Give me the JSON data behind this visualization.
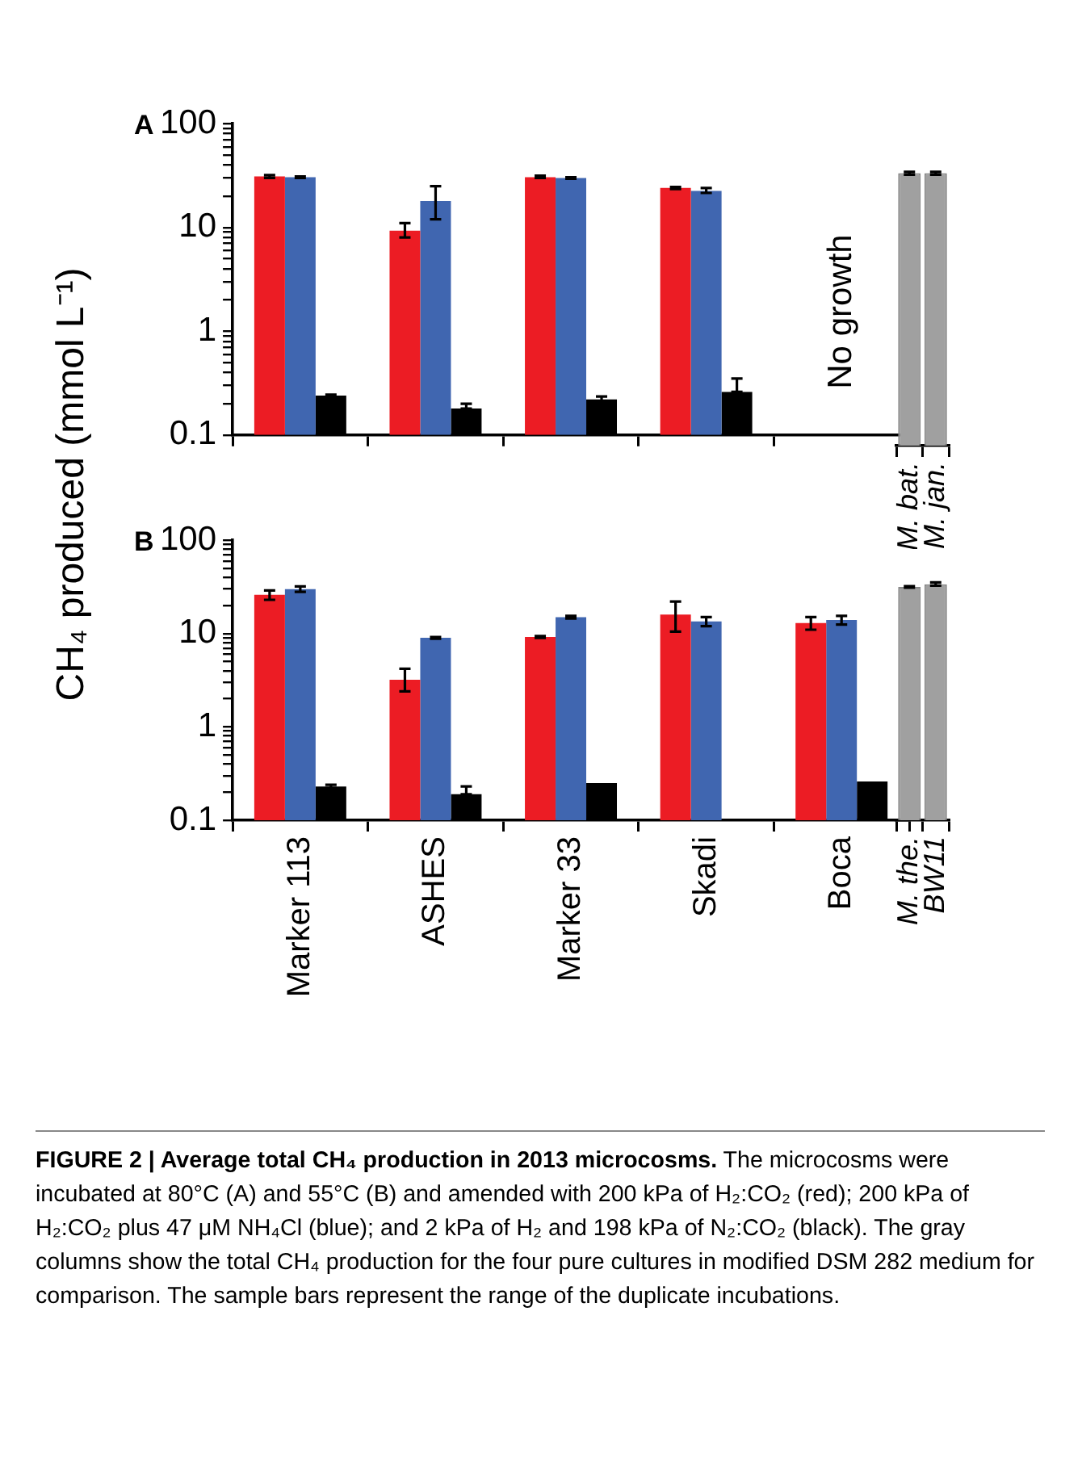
{
  "chart_data": [
    {
      "type": "bar",
      "title": "A",
      "ylabel": "CH₄ produced (mmol L⁻¹)",
      "log": true,
      "tick_labels": "y",
      "categories": [
        null,
        null,
        null,
        null,
        null
      ],
      "ylim": [
        0.1,
        100
      ],
      "yticks": [
        0.1,
        {
          "value": 0.2,
          "label": null
        },
        {
          "value": 0.3,
          "label": null
        },
        {
          "value": 0.4,
          "label": null
        },
        {
          "value": 0.5,
          "label": null
        },
        {
          "value": 0.6,
          "label": null
        },
        {
          "value": 0.7,
          "label": null
        },
        {
          "value": 0.8,
          "label": null
        },
        {
          "value": 0.9,
          "label": null
        },
        1,
        {
          "value": 2,
          "label": null
        },
        {
          "value": 3,
          "label": null
        },
        {
          "value": 4,
          "label": null
        },
        {
          "value": 5,
          "label": null
        },
        {
          "value": 6,
          "label": null
        },
        {
          "value": 7,
          "label": null
        },
        {
          "value": 8,
          "label": null
        },
        {
          "value": 9,
          "label": null
        },
        10,
        {
          "value": 20,
          "label": null
        },
        {
          "value": 30,
          "label": null
        },
        {
          "value": 40,
          "label": null
        },
        {
          "value": 50,
          "label": null
        },
        {
          "value": 60,
          "label": null
        },
        {
          "value": 70,
          "label": null
        },
        {
          "value": 80,
          "label": null
        },
        {
          "value": 90,
          "label": null
        },
        100
      ],
      "series": [
        {
          "color": "#ec1c24",
          "values": [
            31,
            9.3,
            30.5,
            24,
            null
          ],
          "errors": [
            [
              30,
              32
            ],
            [
              8,
              11
            ],
            [
              30,
              31.5
            ],
            [
              23.5,
              24.5
            ],
            null
          ]
        },
        {
          "color": "#4066b0",
          "values": [
            30.5,
            18,
            30,
            22.5,
            null
          ],
          "errors": [
            [
              30,
              31
            ],
            [
              12,
              25
            ],
            [
              29.5,
              30.5
            ],
            [
              21.5,
              24
            ],
            null
          ]
        },
        {
          "color": "#000000",
          "values": [
            0.24,
            0.18,
            0.22,
            0.26,
            null
          ],
          "errors": [
            [
              0.235,
              0.245
            ],
            [
              0.18,
              0.2
            ],
            [
              0.21,
              0.235
            ],
            [
              0.26,
              0.35
            ],
            null
          ]
        }
      ],
      "annotations": [
        "No growth"
      ]
    },
    {
      "type": "bar",
      "log": true,
      "tick_labels": "x",
      "categories": [
        "M. bat.",
        "M. jan."
      ],
      "ylim": [
        0.1,
        100
      ],
      "series": [
        {
          "color": "#a0a0a0",
          "values": [
            33,
            33
          ],
          "errors": [
            [
              32,
              34
            ],
            [
              32,
              34
            ]
          ]
        }
      ]
    },
    {
      "type": "bar",
      "title": "B",
      "log": true,
      "categories": [
        "Marker 113",
        "ASHES",
        "Marker 33",
        "Skadi",
        "Boca"
      ],
      "ylim": [
        0.1,
        100
      ],
      "yticks": [
        0.1,
        {
          "value": 0.2,
          "label": null
        },
        {
          "value": 0.3,
          "label": null
        },
        {
          "value": 0.4,
          "label": null
        },
        {
          "value": 0.5,
          "label": null
        },
        {
          "value": 0.6,
          "label": null
        },
        {
          "value": 0.7,
          "label": null
        },
        {
          "value": 0.8,
          "label": null
        },
        {
          "value": 0.9,
          "label": null
        },
        1,
        {
          "value": 2,
          "label": null
        },
        {
          "value": 3,
          "label": null
        },
        {
          "value": 4,
          "label": null
        },
        {
          "value": 5,
          "label": null
        },
        {
          "value": 6,
          "label": null
        },
        {
          "value": 7,
          "label": null
        },
        {
          "value": 8,
          "label": null
        },
        {
          "value": 9,
          "label": null
        },
        10,
        {
          "value": 20,
          "label": null
        },
        {
          "value": 30,
          "label": null
        },
        {
          "value": 40,
          "label": null
        },
        {
          "value": 50,
          "label": null
        },
        {
          "value": 60,
          "label": null
        },
        {
          "value": 70,
          "label": null
        },
        {
          "value": 80,
          "label": null
        },
        {
          "value": 90,
          "label": null
        },
        100
      ],
      "series": [
        {
          "color": "#ec1c24",
          "values": [
            26,
            3.2,
            9.2,
            16,
            13
          ],
          "errors": [
            [
              23,
              29
            ],
            [
              2.4,
              4.2
            ],
            [
              9,
              9.4
            ],
            [
              10.5,
              22
            ],
            [
              11,
              15
            ]
          ]
        },
        {
          "color": "#4066b0",
          "values": [
            30,
            9,
            15,
            13.5,
            14
          ],
          "errors": [
            [
              28,
              32
            ],
            [
              8.8,
              9.2
            ],
            [
              14.5,
              15.5
            ],
            [
              12,
              15
            ],
            [
              12.5,
              15.5
            ]
          ]
        },
        {
          "color": "#000000",
          "values": [
            0.23,
            0.19,
            0.25,
            null,
            0.26
          ],
          "errors": [
            [
              0.22,
              0.24
            ],
            [
              0.19,
              0.23
            ],
            null,
            null,
            null
          ]
        }
      ],
      "annotations": [
        "FIGURE 2 | Average total CH₄ production in 2013 microcosms.",
        "The microcosms were incubated at 80°C (A) and 55°C (B) and amended with 200 kPa of H₂:CO₂ (red); 200 kPa of H₂:CO₂ plus 47 μM NH₄Cl (blue); and 2 kPa of H₂ and 198 kPa of N₂:CO₂ (black). The gray columns show the total CH₄ production for the four pure cultures in modified DSM 282 medium for comparison. The sample bars represent the range of the duplicate incubations."
      ]
    },
    {
      "type": "bar",
      "log": true,
      "tick_labels": "x",
      "categories": [
        "M. the.",
        "BW11"
      ],
      "ylim": [
        0.1,
        100
      ],
      "series": [
        {
          "color": "#a0a0a0",
          "values": [
            30,
            32
          ],
          "errors": [
            [
              29.5,
              30.5
            ],
            [
              31,
              33.5
            ]
          ]
        }
      ]
    }
  ]
}
